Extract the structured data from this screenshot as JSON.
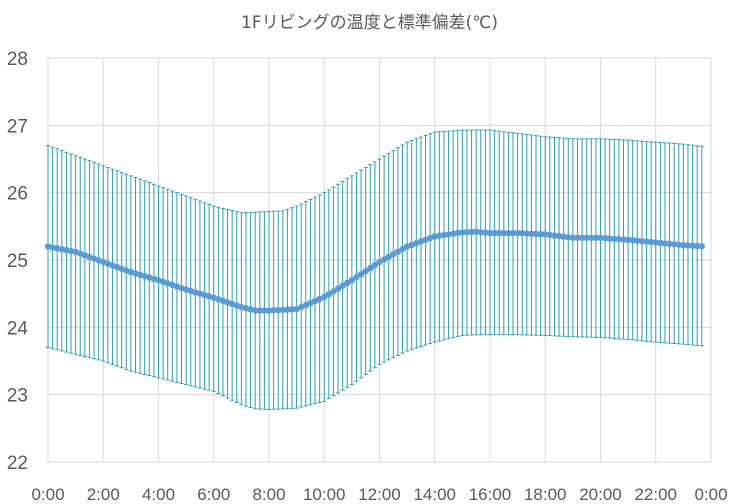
{
  "chart_data": {
    "type": "line",
    "title": "1Fリビングの温度と標準偏差(℃)",
    "xlabel": "",
    "ylabel": "",
    "ylim": [
      22,
      28
    ],
    "yticks": [
      "22",
      "23",
      "24",
      "25",
      "26",
      "27",
      "28"
    ],
    "xlim": [
      0,
      24
    ],
    "xticks": [
      "0:00",
      "2:00",
      "4:00",
      "6:00",
      "8:00",
      "10:00",
      "12:00",
      "14:00",
      "16:00",
      "18:00",
      "20:00",
      "22:00",
      "0:00"
    ],
    "grid": true,
    "legend": "none",
    "x_hours": [
      0,
      1,
      2,
      3,
      4,
      5,
      6,
      7,
      7.5,
      8,
      8.5,
      9,
      10,
      11,
      12,
      13,
      14,
      15,
      15.5,
      16,
      17,
      18,
      19,
      20,
      21,
      22,
      23,
      23.83
    ],
    "mean": [
      25.2,
      25.12,
      24.97,
      24.82,
      24.7,
      24.56,
      24.44,
      24.3,
      24.25,
      24.25,
      24.26,
      24.27,
      24.45,
      24.7,
      24.97,
      25.2,
      25.35,
      25.41,
      25.42,
      25.4,
      25.4,
      25.38,
      25.33,
      25.33,
      25.3,
      25.26,
      25.22,
      25.2
    ],
    "upper": [
      26.7,
      26.55,
      26.4,
      26.25,
      26.1,
      25.95,
      25.8,
      25.7,
      25.71,
      25.72,
      25.73,
      25.8,
      26.0,
      26.25,
      26.5,
      26.75,
      26.9,
      26.93,
      26.93,
      26.93,
      26.88,
      26.83,
      26.8,
      26.8,
      26.78,
      26.75,
      26.72,
      26.68
    ],
    "lower": [
      23.7,
      23.6,
      23.5,
      23.35,
      23.25,
      23.15,
      23.05,
      22.85,
      22.79,
      22.78,
      22.79,
      22.8,
      22.9,
      23.15,
      23.45,
      23.65,
      23.78,
      23.88,
      23.89,
      23.89,
      23.89,
      23.88,
      23.86,
      23.85,
      23.82,
      23.78,
      23.75,
      23.72
    ],
    "colors": {
      "mean_line": "#5b9bd5",
      "error_bars": "#2e9fb0",
      "grid": "#d9d9d9",
      "axis": "#d9d9d9",
      "text": "#595959"
    }
  }
}
